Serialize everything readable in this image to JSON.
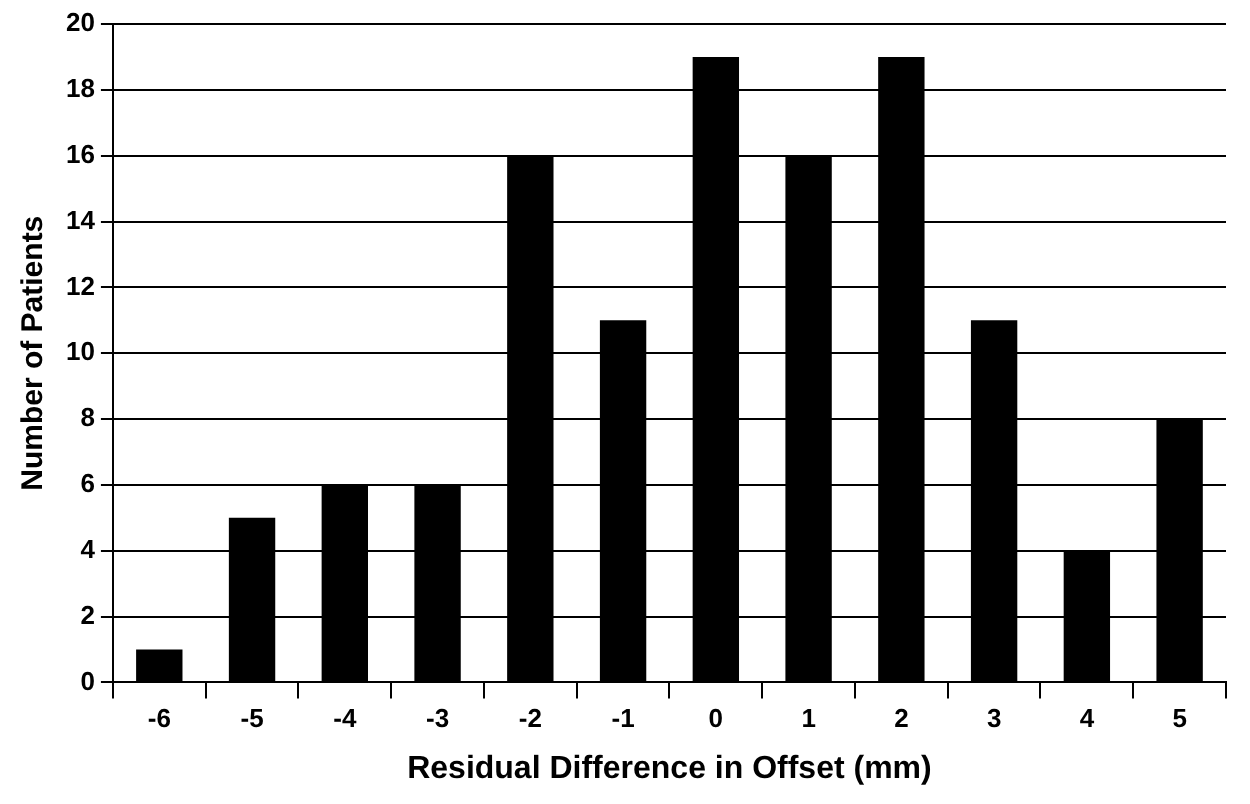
{
  "chart_data": {
    "type": "bar",
    "xlabel": "Residual Difference in Offset (mm)",
    "ylabel": "Number of Patients",
    "categories": [
      "-6",
      "-5",
      "-4",
      "-3",
      "-2",
      "-1",
      "0",
      "1",
      "2",
      "3",
      "4",
      "5"
    ],
    "values": [
      1,
      5,
      6,
      6,
      16,
      11,
      19,
      16,
      19,
      11,
      4,
      8
    ],
    "color": "#000000",
    "ylim": [
      0,
      20
    ],
    "yticks": [
      0,
      2,
      4,
      6,
      8,
      10,
      12,
      14,
      16,
      18,
      20
    ],
    "grid": "y",
    "legend": false
  }
}
